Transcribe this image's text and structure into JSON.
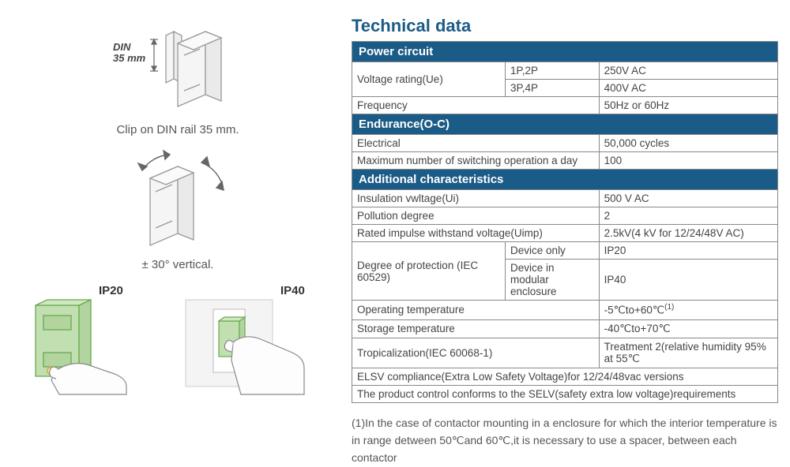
{
  "colors": {
    "header_bg": "#1b5b87",
    "title_color": "#1b5b87",
    "border": "#888888",
    "text": "#444444",
    "green_fill": "#c1dfb0",
    "green_stroke": "#6aa84f",
    "device_fill": "#f5f5f5",
    "device_stroke": "#999999",
    "arrow_fill": "#666666"
  },
  "diagrams": {
    "din": {
      "label": "DIN\n35 mm",
      "caption": "Clip on DIN rail 35 mm."
    },
    "tilt": {
      "caption": "± 30°  vertical."
    },
    "ip20": {
      "label": "IP20"
    },
    "ip40": {
      "label": "IP40"
    }
  },
  "title": "Technical data",
  "table": {
    "sections": [
      {
        "header": "Power circuit",
        "rows": [
          {
            "label": "Voltage rating(Ue)",
            "sub": "1P,2P",
            "val": "250V AC",
            "rowspan_label": 2
          },
          {
            "sub": "3P,4P",
            "val": "400V AC"
          },
          {
            "label": "Frequency",
            "sub": "",
            "val": "50Hz or 60Hz",
            "merge_label_sub": true
          }
        ]
      },
      {
        "header": "Endurance(O-C)",
        "rows": [
          {
            "label": "Electrical",
            "sub": "",
            "val": "50,000 cycles",
            "merge_label_sub": true
          },
          {
            "label": "Maximum number of switching operation a day",
            "sub": "",
            "val": "100",
            "merge_label_sub": true
          }
        ]
      },
      {
        "header": "Additional characteristics",
        "rows": [
          {
            "label": "Insulation vwltage(Ui)",
            "sub": "",
            "val": "500 V AC",
            "merge_label_sub": true
          },
          {
            "label": "Pollution degree",
            "sub": "",
            "val": "2",
            "merge_label_sub": true
          },
          {
            "label": "Rated impulse withstand voltage(Uimp)",
            "sub": "",
            "val": "2.5kV(4 kV for 12/24/48V AC)",
            "merge_label_sub": true
          },
          {
            "label": "Degree of protection (IEC 60529)",
            "sub": "Device only",
            "val": "IP20",
            "rowspan_label": 2
          },
          {
            "sub": "Device in modular enclosure",
            "val": "IP40"
          },
          {
            "label": "Operating temperature",
            "sub": "",
            "val": "-5℃to+60℃<sup>(1)</sup>",
            "merge_label_sub": true,
            "html_val": true
          },
          {
            "label": "Storage temperature",
            "sub": "",
            "val": "-40℃to+70℃",
            "merge_label_sub": true
          },
          {
            "label": "Tropicalization(IEC 60068-1)",
            "sub": "",
            "val": "Treatment 2(relative humidity 95% at 55℃",
            "merge_label_sub": true
          },
          {
            "full": "ELSV compliance(Extra Low Safety Voltage)for 12/24/48vac versions"
          },
          {
            "full": "The product control conforms to the SELV(safety extra low voltage)requirements"
          }
        ]
      }
    ]
  },
  "footnote": "(1)In the case of contactor mounting in a enclosure for which the interior temperature is in range detween 50℃and 60℃,it is necessary to use a spacer, between each contactor"
}
